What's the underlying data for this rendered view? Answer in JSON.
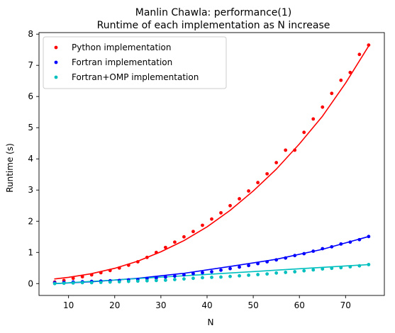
{
  "chart_data": {
    "type": "scatter",
    "title": "Manlin Chawla: performance(1)",
    "subtitle": "Runtime of each implementation as N increase",
    "xlabel": "N",
    "ylabel": "Runtime (s)",
    "xlim": [
      3.6,
      78.4
    ],
    "ylim": [
      -0.38,
      8.05
    ],
    "xticks": [
      10,
      20,
      30,
      40,
      50,
      60,
      70
    ],
    "yticks": [
      0,
      1,
      2,
      3,
      4,
      5,
      6,
      7,
      8
    ],
    "grid": false,
    "legend_position": "top-left",
    "series": [
      {
        "name": "Python implementation",
        "color": "#ff0000",
        "marker_x": [
          7,
          9,
          11,
          13,
          15,
          17,
          19,
          21,
          23,
          25,
          27,
          29,
          31,
          33,
          35,
          37,
          39,
          41,
          43,
          45,
          47,
          49,
          51,
          53,
          55,
          57,
          59,
          61,
          63,
          65,
          67,
          69,
          71,
          73,
          75
        ],
        "marker_y": [
          0.05,
          0.1,
          0.17,
          0.22,
          0.28,
          0.35,
          0.42,
          0.5,
          0.59,
          0.7,
          0.84,
          1.0,
          1.16,
          1.33,
          1.5,
          1.67,
          1.87,
          2.07,
          2.27,
          2.5,
          2.72,
          2.97,
          3.24,
          3.52,
          3.88,
          4.28,
          4.28,
          4.85,
          5.28,
          5.66,
          6.1,
          6.52,
          6.77,
          7.35,
          7.65
        ],
        "fit_x": [
          7,
          10,
          15,
          20,
          25,
          30,
          35,
          40,
          45,
          50,
          55,
          60,
          65,
          70,
          75
        ],
        "fit_y": [
          0.15,
          0.2,
          0.32,
          0.49,
          0.72,
          1.02,
          1.38,
          1.82,
          2.35,
          2.97,
          3.67,
          4.48,
          5.37,
          6.43,
          7.62
        ]
      },
      {
        "name": "Fortran implementation",
        "color": "#0000ff",
        "marker_x": [
          7,
          9,
          11,
          13,
          15,
          17,
          19,
          21,
          23,
          25,
          27,
          29,
          31,
          33,
          35,
          37,
          39,
          41,
          43,
          45,
          47,
          49,
          51,
          53,
          55,
          57,
          59,
          61,
          63,
          65,
          67,
          69,
          71,
          73,
          75
        ],
        "marker_y": [
          0.03,
          0.04,
          0.05,
          0.06,
          0.07,
          0.08,
          0.09,
          0.1,
          0.12,
          0.13,
          0.16,
          0.18,
          0.21,
          0.24,
          0.28,
          0.32,
          0.35,
          0.38,
          0.43,
          0.48,
          0.53,
          0.58,
          0.64,
          0.7,
          0.76,
          0.82,
          0.9,
          0.96,
          1.04,
          1.12,
          1.18,
          1.27,
          1.33,
          1.41,
          1.51
        ],
        "fit_x": [
          7,
          15,
          25,
          35,
          45,
          55,
          65,
          75
        ],
        "fit_y": [
          0.0,
          0.06,
          0.17,
          0.33,
          0.55,
          0.78,
          1.1,
          1.51
        ]
      },
      {
        "name": "Fortran+OMP implementation",
        "color": "#00bfbf",
        "marker_x": [
          7,
          9,
          11,
          13,
          15,
          17,
          19,
          21,
          23,
          25,
          27,
          29,
          31,
          33,
          35,
          37,
          39,
          41,
          43,
          45,
          47,
          49,
          51,
          53,
          55,
          57,
          59,
          61,
          63,
          65,
          67,
          69,
          71,
          73,
          75
        ],
        "marker_y": [
          0.0,
          0.01,
          0.02,
          0.03,
          0.03,
          0.04,
          0.05,
          0.06,
          0.07,
          0.08,
          0.09,
          0.1,
          0.11,
          0.13,
          0.15,
          0.17,
          0.19,
          0.2,
          0.21,
          0.23,
          0.25,
          0.27,
          0.29,
          0.31,
          0.34,
          0.36,
          0.38,
          0.41,
          0.44,
          0.47,
          0.49,
          0.51,
          0.54,
          0.57,
          0.61
        ],
        "fit_x": [
          7,
          75
        ],
        "fit_y": [
          0.0,
          0.61
        ]
      }
    ]
  }
}
